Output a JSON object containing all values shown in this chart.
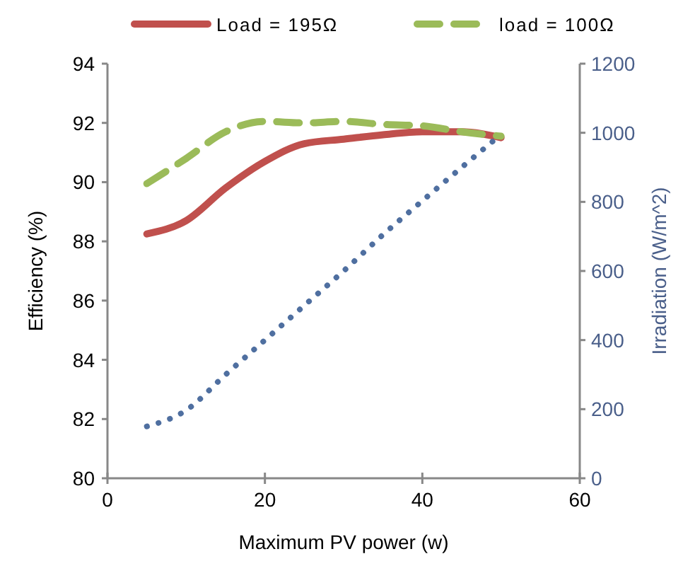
{
  "chart_data": {
    "type": "line",
    "xlabel": "Maximum PV power (w)",
    "ylabel": "Efficiency (%)",
    "y2label": "Irradiation (W/m^2)",
    "x": [
      5,
      10,
      15,
      20,
      25,
      30,
      35,
      40,
      45,
      50
    ],
    "xlim": [
      0,
      60
    ],
    "xticks": [
      0,
      20,
      40,
      60
    ],
    "ylim": [
      80,
      94
    ],
    "yticks": [
      80,
      82,
      84,
      86,
      88,
      90,
      92,
      94
    ],
    "y2lim": [
      0,
      1200
    ],
    "y2ticks": [
      0,
      200,
      400,
      600,
      800,
      1000,
      1200
    ],
    "grid": false,
    "legend": "top",
    "marker": "none",
    "series": [
      {
        "name": "Load = 195Ω",
        "color": "#c0504d",
        "line_style": "solid",
        "values": [
          88.25,
          88.7,
          89.8,
          90.7,
          91.3,
          91.45,
          91.6,
          91.7,
          91.7,
          91.5
        ]
      },
      {
        "name": "load = 100Ω",
        "color": "#9bbb59",
        "line_style": "dashed",
        "values": [
          89.95,
          90.8,
          91.7,
          92.05,
          92.0,
          92.05,
          91.95,
          91.9,
          91.7,
          91.55
        ]
      },
      {
        "color": "#4f6fa0",
        "line_style": "dotted",
        "axis": "y2",
        "values": [
          150,
          197,
          300,
          400,
          500,
          600,
          705,
          803,
          900,
          995
        ]
      }
    ]
  }
}
